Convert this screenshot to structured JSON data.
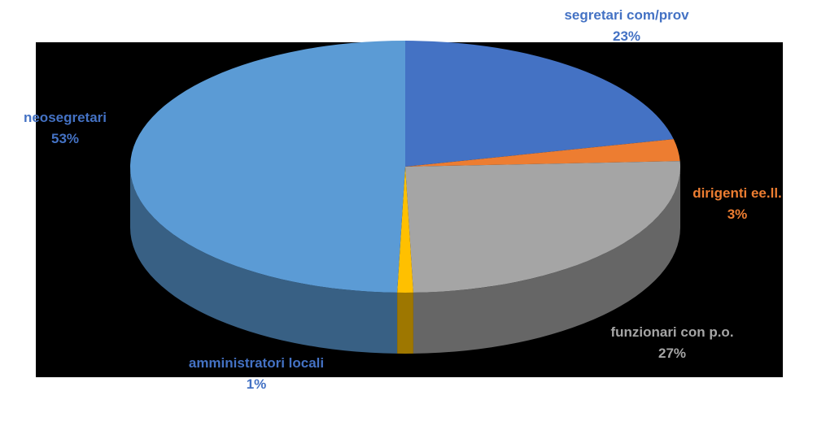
{
  "chart_data": {
    "type": "pie",
    "categories": [
      "segretari com/prov",
      "dirigenti ee.ll.",
      "funzionari con p.o.",
      "amministratori locali",
      "neosegretari"
    ],
    "values": [
      23,
      3,
      27,
      1,
      53
    ],
    "value_labels": [
      "23%",
      "3%",
      "27%",
      "1%",
      "53%"
    ],
    "colors": [
      "#4472c4",
      "#ed7d31",
      "#a5a5a5",
      "#ffc000",
      "#5b9bd5"
    ],
    "label_colors": [
      "#4472c4",
      "#ed7d31",
      "#a5a5a5",
      "#4472c4",
      "#4472c4"
    ]
  }
}
